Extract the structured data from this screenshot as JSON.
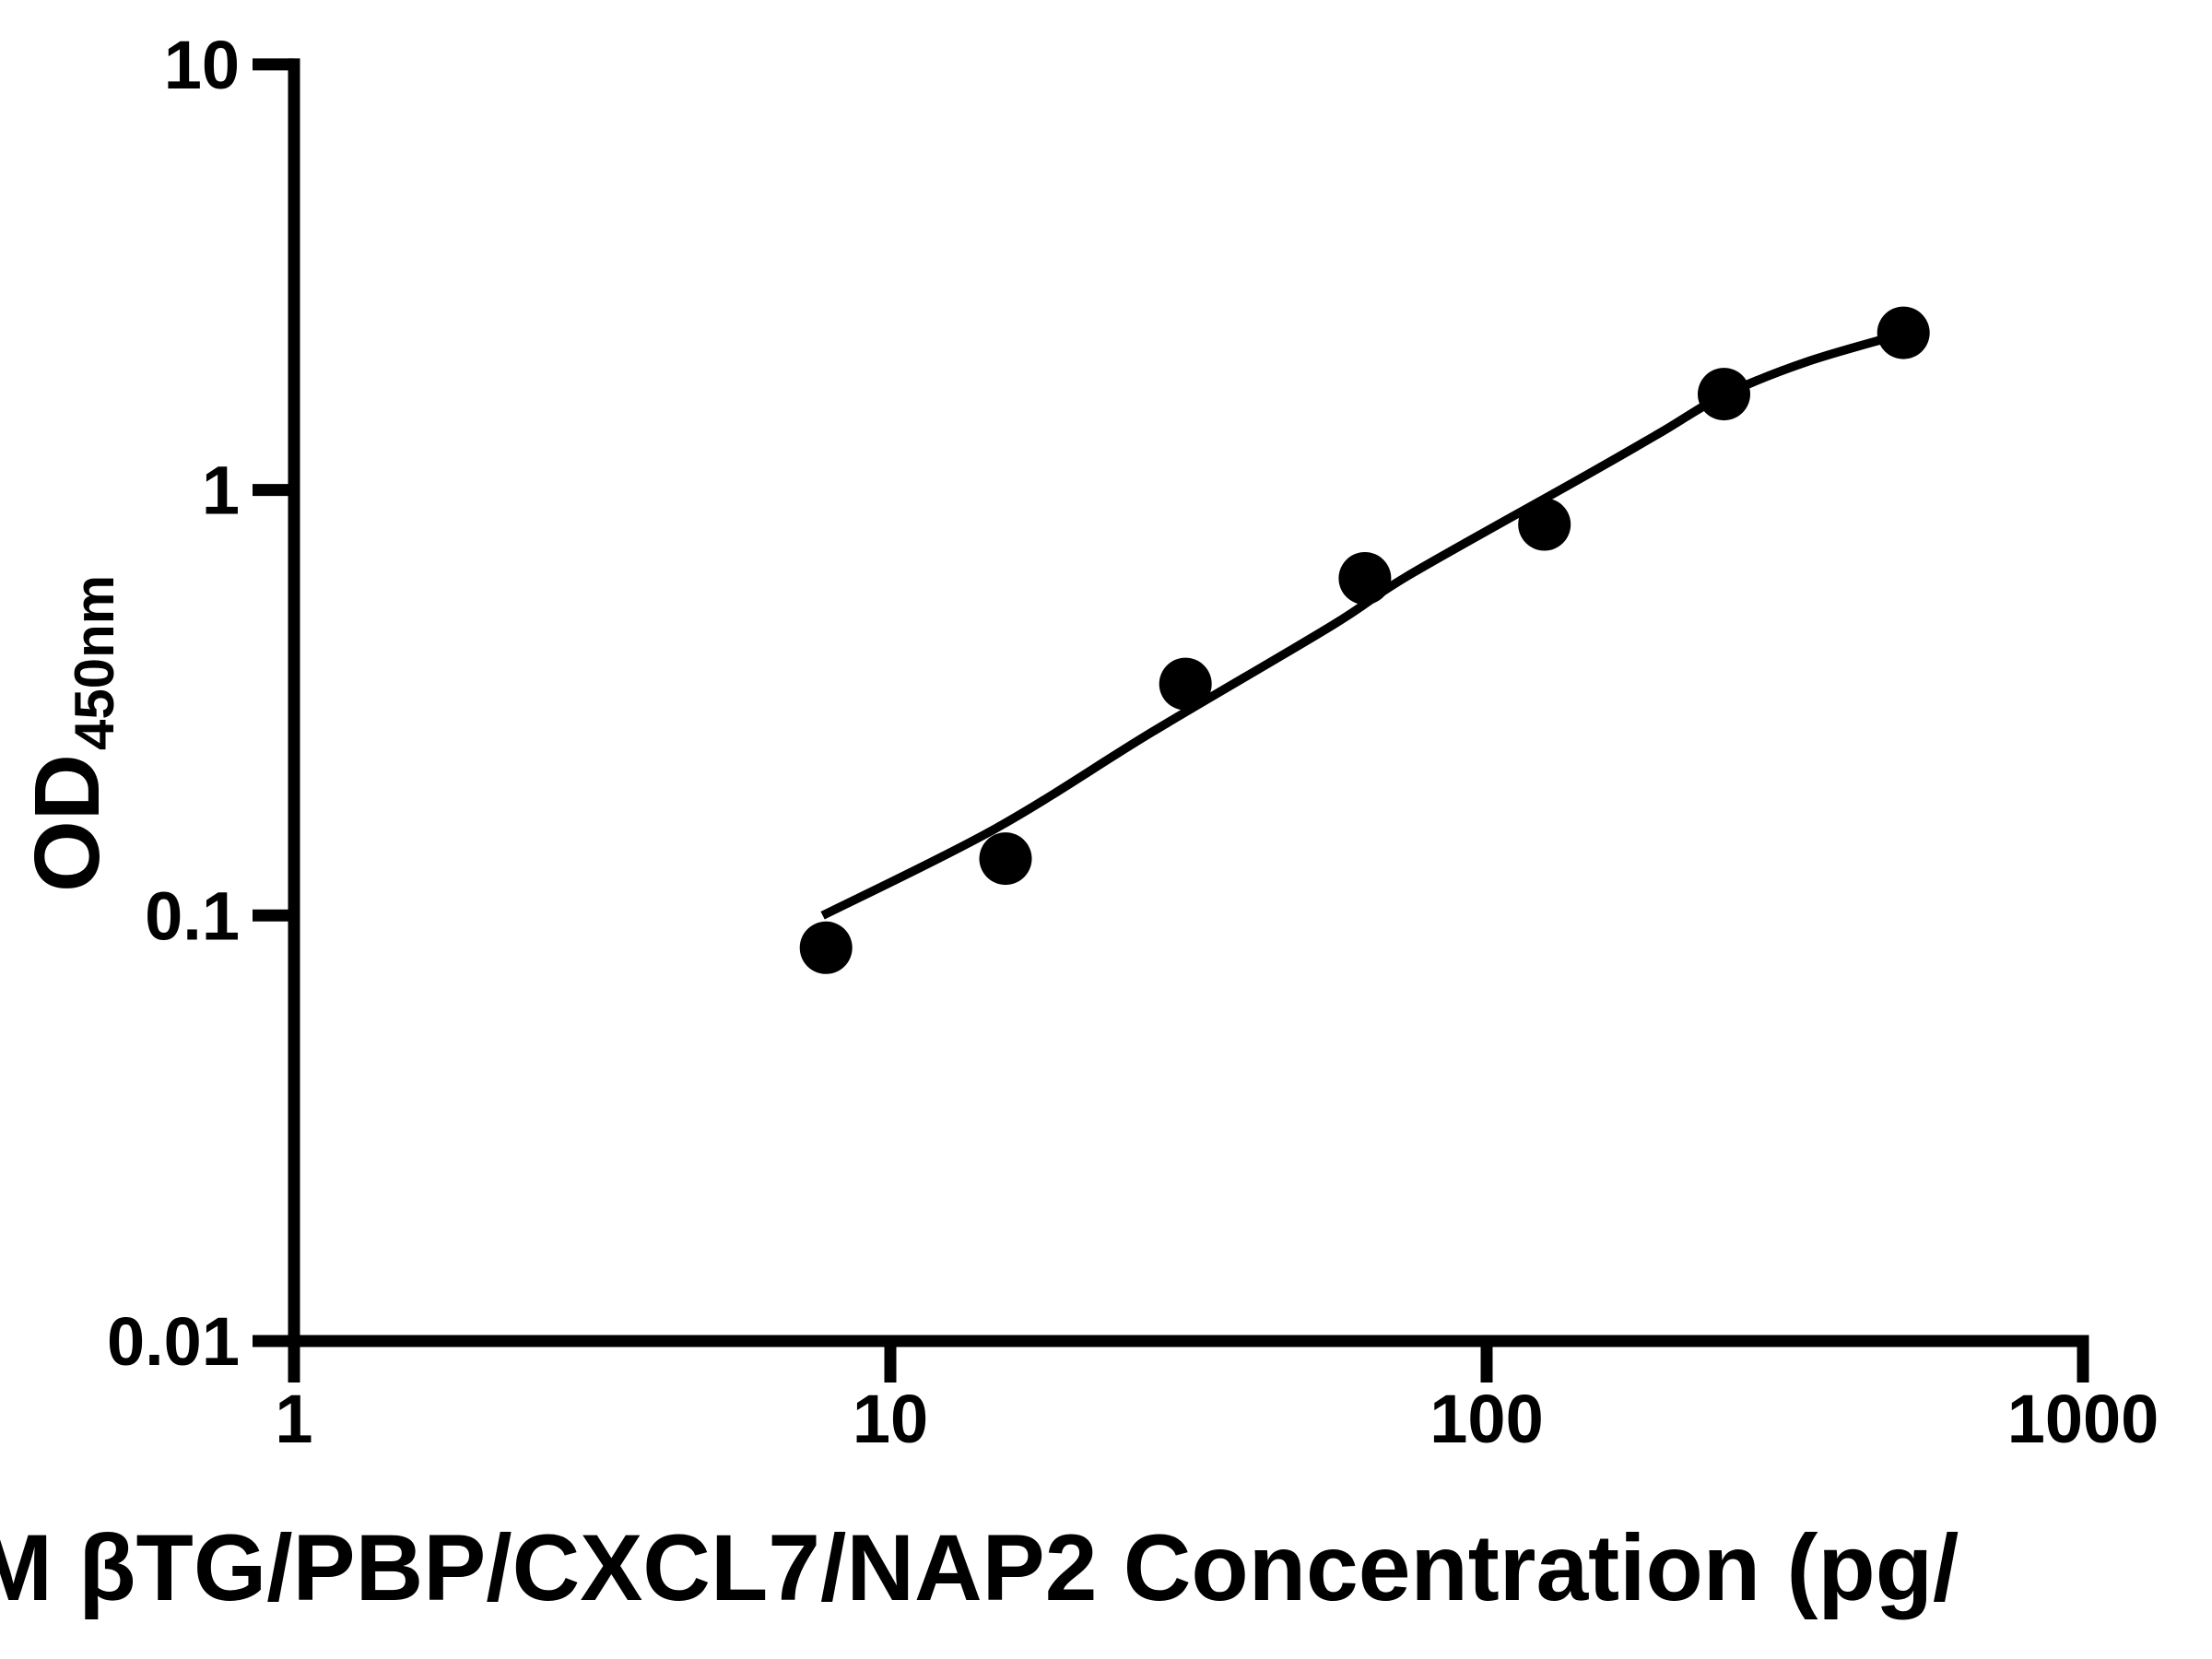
{
  "figure": {
    "background": "#ffffff",
    "ink": "#000000"
  },
  "axes": {
    "x": {
      "scale": "log",
      "min": 1,
      "max": 1000,
      "ticks": [
        1,
        10,
        100,
        1000
      ],
      "tick_labels": [
        "1",
        "10",
        "100",
        "1000"
      ],
      "title_visible": "M βTG/PBP/CXCL7/NAP2 Concentration (pg/"
    },
    "y": {
      "scale": "log",
      "min": 0.01,
      "max": 10,
      "ticks": [
        10,
        1,
        0.1,
        0.01
      ],
      "tick_labels": [
        "10",
        "1",
        "0.1",
        "0.01"
      ],
      "title_main": "OD",
      "title_subscript": "450nm"
    }
  },
  "chart_data": {
    "type": "scatter",
    "title": "",
    "xlabel": "M βTG/PBP/CXCL7/NAP2 Concentration (pg/",
    "ylabel": "OD450nm",
    "xlim": [
      1,
      1000
    ],
    "ylim": [
      0.01,
      10
    ],
    "x_scale": "log",
    "y_scale": "log",
    "grid": false,
    "legend": false,
    "series": [
      {
        "name": "standard-points",
        "role": "points",
        "marker": "filled-circle",
        "color": "#000000",
        "x": [
          7.8,
          15.6,
          31.25,
          62.5,
          125,
          250,
          500
        ],
        "y": [
          0.084,
          0.136,
          0.35,
          0.62,
          0.83,
          1.68,
          2.34
        ]
      },
      {
        "name": "fit-curve",
        "role": "line",
        "color": "#000000",
        "x": [
          7.7,
          15,
          27.5,
          55,
          74,
          143,
          195,
          250,
          344,
          500
        ],
        "y": [
          0.1,
          0.16,
          0.27,
          0.48,
          0.63,
          1.06,
          1.36,
          1.67,
          2.0,
          2.33
        ]
      }
    ]
  }
}
